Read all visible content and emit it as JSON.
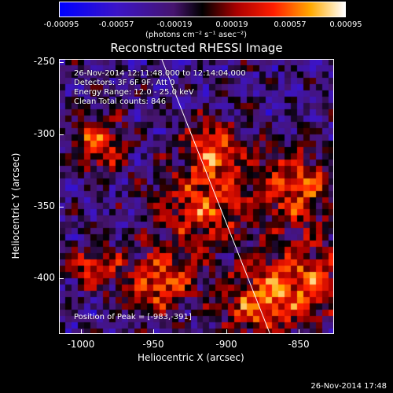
{
  "colorbar": {
    "ticks": [
      "-0.00095",
      "-0.00057",
      "-0.00019",
      "0.00019",
      "0.00057",
      "0.00095"
    ],
    "unit_label": "(photons cm⁻² s⁻¹ asec⁻²)",
    "vmin": -0.00095,
    "vmax": 0.00095
  },
  "title": "Reconstructed RHESSI Image",
  "info": {
    "time_range": "26-Nov-2014 12:11:48.000 to 12:14:04.000",
    "detectors": "Detectors: 3F 6F 9F, Att 0",
    "energy": "Energy Range: 12.0 - 25.0 keV",
    "clean": "Clean    Total counts: 846",
    "peak": "Position of Peak = [-983,-391]"
  },
  "axes": {
    "x_label": "Heliocentric X (arcsec)",
    "y_label": "Heliocentric Y (arcsec)",
    "x_ticks": [
      "-1000",
      "-950",
      "-900",
      "-850"
    ],
    "y_ticks": [
      "-250",
      "-300",
      "-350",
      "-400"
    ],
    "x_range": [
      -1010,
      -820
    ],
    "y_range": [
      -440,
      -250
    ]
  },
  "footer_date": "26-Nov-2014 17:48",
  "colors": {
    "background": "#000000",
    "foreground": "#ffffff"
  }
}
